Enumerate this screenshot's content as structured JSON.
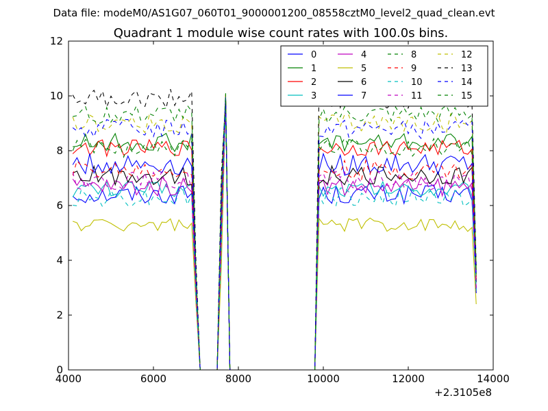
{
  "figure": {
    "suptitle": "Data file: modeM0/AS1G07_060T01_9000001200_08558cztM0_level2_quad_clean.evt"
  },
  "chart_data": {
    "type": "line",
    "title": "Quadrant 1 module wise count rates with 100.0s bins.",
    "xlabel": "",
    "ylabel": "",
    "x_offset_label": "+2.3105e8",
    "xlim": [
      4000,
      14000
    ],
    "ylim": [
      0,
      12
    ],
    "xticks": [
      4000,
      6000,
      8000,
      10000,
      12000,
      14000
    ],
    "yticks": [
      0,
      2,
      4,
      6,
      8,
      10,
      12
    ],
    "grid": false,
    "legend_position": "top-right",
    "legend_columns": 4,
    "bin_seconds": 100,
    "segments": [
      {
        "x_start": 4100,
        "x_end": 6900
      },
      {
        "x_start": 9900,
        "x_end": 13600
      }
    ],
    "flare": {
      "x": [
        7000,
        7100,
        7500,
        7600,
        7700,
        7800
      ],
      "y_factor": [
        0.42,
        0,
        0,
        0.72,
        1.0,
        0
      ]
    },
    "gap_x": [
      7900,
      9800
    ],
    "series": [
      {
        "name": "0",
        "color": "#0000ff",
        "dash": "solid",
        "level": 6.4,
        "noise": 0.35,
        "end_value": 3.0
      },
      {
        "name": "1",
        "color": "#008000",
        "dash": "solid",
        "level": 8.3,
        "noise": 0.35,
        "end_value": 3.5
      },
      {
        "name": "2",
        "color": "#ff0000",
        "dash": "solid",
        "level": 8.1,
        "noise": 0.3,
        "end_value": 3.3
      },
      {
        "name": "3",
        "color": "#00bfbf",
        "dash": "solid",
        "level": 6.6,
        "noise": 0.3,
        "end_value": 2.9
      },
      {
        "name": "4",
        "color": "#bf00bf",
        "dash": "solid",
        "level": 6.7,
        "noise": 0.35,
        "end_value": 3.0
      },
      {
        "name": "5",
        "color": "#bfbf00",
        "dash": "solid",
        "level": 5.3,
        "noise": 0.25,
        "end_value": 2.4
      },
      {
        "name": "6",
        "color": "#000000",
        "dash": "solid",
        "level": 7.1,
        "noise": 0.35,
        "end_value": 3.2
      },
      {
        "name": "7",
        "color": "#0000ff",
        "dash": "solid",
        "level": 7.5,
        "noise": 0.4,
        "end_value": 2.8
      },
      {
        "name": "8",
        "color": "#008000",
        "dash": "dashed",
        "level": 8.1,
        "noise": 0.35,
        "end_value": 3.4
      },
      {
        "name": "9",
        "color": "#ff0000",
        "dash": "dashed",
        "level": 7.3,
        "noise": 0.35,
        "end_value": 3.2
      },
      {
        "name": "10",
        "color": "#00bfbf",
        "dash": "dashed",
        "level": 6.3,
        "noise": 0.35,
        "end_value": 2.9
      },
      {
        "name": "11",
        "color": "#bf00bf",
        "dash": "dashed",
        "level": 6.9,
        "noise": 0.35,
        "end_value": 3.0
      },
      {
        "name": "12",
        "color": "#bfbf00",
        "dash": "dashed",
        "level": 9.0,
        "noise": 0.35,
        "end_value": 3.6
      },
      {
        "name": "13",
        "color": "#000000",
        "dash": "dashed",
        "level": 9.9,
        "noise": 0.35,
        "end_value": 3.8
      },
      {
        "name": "14",
        "color": "#0000ff",
        "dash": "dashed",
        "level": 8.8,
        "noise": 0.35,
        "end_value": 3.5
      },
      {
        "name": "15",
        "color": "#008000",
        "dash": "dashed",
        "level": 9.3,
        "noise": 0.35,
        "end_value": 3.6
      }
    ]
  }
}
